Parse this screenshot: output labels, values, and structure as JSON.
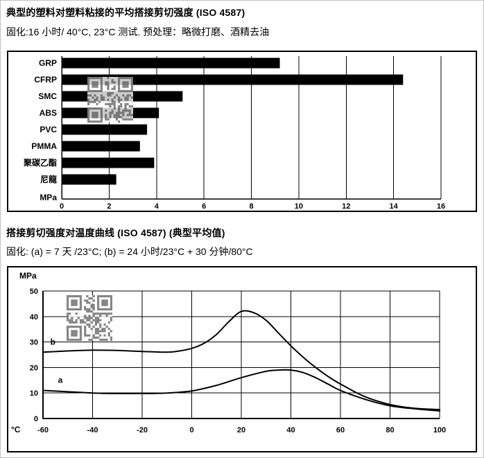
{
  "page": {
    "background": "#ffffff",
    "border_color": "#c0c0c0"
  },
  "watermark": {
    "name": "qr-code-watermark",
    "module_color": "#505050"
  },
  "chart_data": [
    {
      "type": "bar",
      "orientation": "horizontal",
      "title": "典型的塑料对塑料粘接的平均搭接剪切强度 (ISO 4587)",
      "subtitle": "固化:16 小时/ 40°C, 23°C 测试. 预处理：略微打磨、酒精去油",
      "categories": [
        "GRP",
        "CFRP",
        "SMC",
        "ABS",
        "PVC",
        "PMMA",
        "聚碳乙酯",
        "尼龍"
      ],
      "values": [
        9.2,
        14.4,
        5.1,
        4.1,
        3.6,
        3.3,
        3.9,
        2.3
      ],
      "x_unit": "MPa",
      "xlim": [
        0,
        16
      ],
      "xticks": [
        0,
        2,
        4,
        6,
        8,
        10,
        12,
        14,
        16
      ],
      "grid": true,
      "bar_color": "#000000"
    },
    {
      "type": "line",
      "title": "搭接剪切强度对温度曲线 (ISO 4587) (典型平均值)",
      "subtitle": "固化: (a) = 7 天 /23°C; (b) = 24 小时/23°C + 30 分钟/80°C",
      "xlabel": "°C",
      "ylabel": "MPa",
      "xlim": [
        -60,
        100
      ],
      "ylim": [
        0,
        50
      ],
      "xticks": [
        -60,
        -40,
        -20,
        0,
        20,
        40,
        60,
        80,
        100
      ],
      "yticks": [
        0,
        10,
        20,
        30,
        40,
        50
      ],
      "grid": true,
      "line_color": "#000000",
      "series": [
        {
          "name": "b",
          "label_at": {
            "x": -56,
            "y": 29
          },
          "points": [
            [
              -60,
              26
            ],
            [
              -50,
              26.5
            ],
            [
              -40,
              26.8
            ],
            [
              -30,
              26.7
            ],
            [
              -20,
              26.3
            ],
            [
              -10,
              26
            ],
            [
              -5,
              26.5
            ],
            [
              0,
              27.5
            ],
            [
              5,
              29.5
            ],
            [
              10,
              33
            ],
            [
              15,
              38
            ],
            [
              20,
              42
            ],
            [
              25,
              41.5
            ],
            [
              30,
              38.5
            ],
            [
              35,
              33.5
            ],
            [
              40,
              28.5
            ],
            [
              45,
              24
            ],
            [
              50,
              20
            ],
            [
              55,
              16.5
            ],
            [
              60,
              13.5
            ],
            [
              70,
              8.5
            ],
            [
              80,
              5.5
            ],
            [
              90,
              4
            ],
            [
              100,
              3.5
            ]
          ]
        },
        {
          "name": "a",
          "label_at": {
            "x": -53,
            "y": 14
          },
          "points": [
            [
              -60,
              11
            ],
            [
              -50,
              10.5
            ],
            [
              -40,
              10
            ],
            [
              -30,
              9.8
            ],
            [
              -20,
              9.8
            ],
            [
              -10,
              10
            ],
            [
              0,
              10.8
            ],
            [
              10,
              13
            ],
            [
              20,
              16
            ],
            [
              30,
              18.5
            ],
            [
              35,
              19
            ],
            [
              40,
              19
            ],
            [
              45,
              18
            ],
            [
              50,
              16
            ],
            [
              55,
              13.5
            ],
            [
              60,
              11
            ],
            [
              70,
              7.5
            ],
            [
              80,
              5
            ],
            [
              90,
              3.8
            ],
            [
              100,
              3
            ]
          ]
        }
      ]
    }
  ]
}
